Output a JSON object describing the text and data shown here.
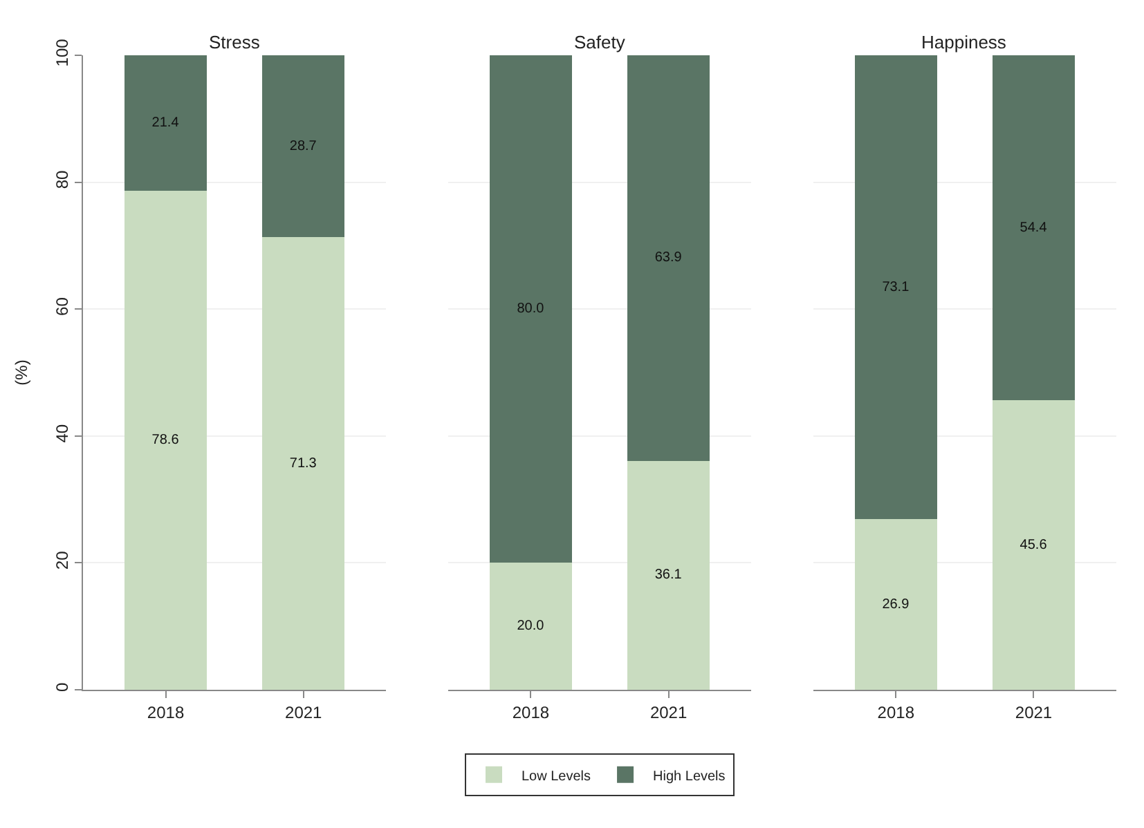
{
  "chart_data": [
    {
      "type": "bar",
      "title": "Stress",
      "ylabel": "(%)",
      "categories": [
        "2018",
        "2021"
      ],
      "stacked": true,
      "ylim": [
        0,
        100
      ],
      "yticks": [
        0,
        20,
        40,
        60,
        80,
        100
      ],
      "grid": "y",
      "legend": "bottom",
      "series": [
        {
          "name": "Low Levels",
          "color": "#c9dcc0",
          "values": [
            78.6,
            71.3
          ],
          "value_labels": [
            "78.6",
            "71.3"
          ]
        },
        {
          "name": "High Levels",
          "color": "#5a7565",
          "values": [
            21.4,
            28.7
          ],
          "value_labels": [
            "21.4",
            "28.7"
          ]
        }
      ]
    },
    {
      "type": "bar",
      "title": "Safety",
      "categories": [
        "2018",
        "2021"
      ],
      "stacked": true,
      "ylim": [
        0,
        100
      ],
      "yticks": [
        0,
        20,
        40,
        60,
        80,
        100
      ],
      "grid": "y",
      "tick_labels": "x",
      "series": [
        {
          "color": "#c9dcc0",
          "values": [
            20.0,
            36.1
          ],
          "value_labels": [
            "20.0",
            "36.1"
          ]
        },
        {
          "color": "#5a7565",
          "values": [
            80.0,
            63.9
          ],
          "value_labels": [
            "80.0",
            "63.9"
          ]
        }
      ]
    },
    {
      "type": "bar",
      "title": "Happiness",
      "categories": [
        "2018",
        "2021"
      ],
      "stacked": true,
      "ylim": [
        0,
        100
      ],
      "yticks": [
        0,
        20,
        40,
        60,
        80,
        100
      ],
      "grid": "y",
      "tick_labels": "x",
      "series": [
        {
          "color": "#c9dcc0",
          "values": [
            26.9,
            45.6
          ],
          "value_labels": [
            "26.9",
            "45.6"
          ]
        },
        {
          "color": "#5a7565",
          "values": [
            73.1,
            54.4
          ],
          "value_labels": [
            "73.1",
            "54.4"
          ]
        }
      ]
    }
  ]
}
